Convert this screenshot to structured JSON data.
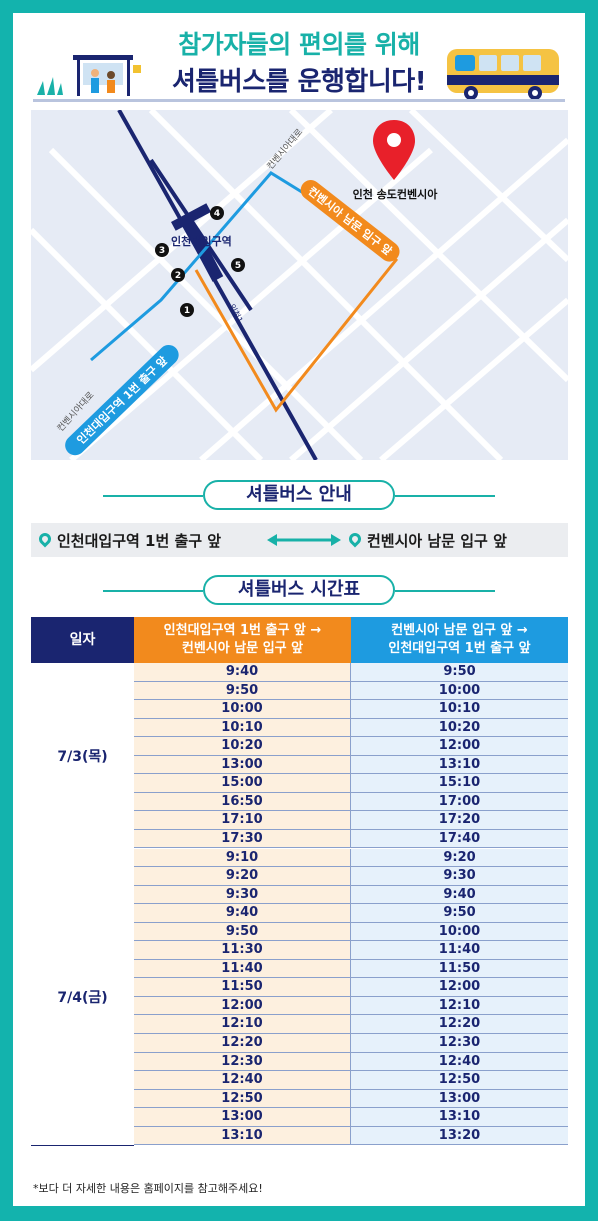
{
  "header": {
    "line1": "참가자들의 편의를 위해",
    "line2": "셔틀버스를 운행합니다!"
  },
  "map": {
    "destination_label": "인천 송도컨벤시아",
    "station_label": "인천대입구역",
    "road_label_top": "컨벤시아대로",
    "road_label_left": "컨벤시아대로",
    "road_label_mid": "인천1",
    "route_blue_label": "인천대입구역 1번 출구 앞",
    "route_orange_label": "컨벤시아 남문 입구 앞",
    "exits": [
      "1",
      "2",
      "3",
      "4",
      "5"
    ],
    "colors": {
      "blue_route": "#1e9be0",
      "orange_route": "#f28a1d",
      "subway": "#1a2570",
      "pin": "#e8202a"
    }
  },
  "guide": {
    "title": "셔틀버스 안내",
    "from": "인천대입구역 1번 출구 앞",
    "to": "컨벤시아 남문 입구 앞"
  },
  "timetable": {
    "title": "셔틀버스 시간표",
    "headers": {
      "date": "일자",
      "col1_line1": "인천대입구역 1번 출구 앞 →",
      "col1_line2": "컨벤시아 남문 입구 앞",
      "col2_line1": "컨벤시아 남문 입구 앞 →",
      "col2_line2": "인천대입구역 1번 출구 앞"
    },
    "days": [
      {
        "label": "7/3(목)",
        "rows": [
          [
            "9:40",
            "9:50"
          ],
          [
            "9:50",
            "10:00"
          ],
          [
            "10:00",
            "10:10"
          ],
          [
            "10:10",
            "10:20"
          ],
          [
            "10:20",
            "12:00"
          ],
          [
            "13:00",
            "13:10"
          ],
          [
            "15:00",
            "15:10"
          ],
          [
            "16:50",
            "17:00"
          ],
          [
            "17:10",
            "17:20"
          ],
          [
            "17:30",
            "17:40"
          ]
        ]
      },
      {
        "label": "7/4(금)",
        "rows": [
          [
            "9:10",
            "9:20"
          ],
          [
            "9:20",
            "9:30"
          ],
          [
            "9:30",
            "9:40"
          ],
          [
            "9:40",
            "9:50"
          ],
          [
            "9:50",
            "10:00"
          ],
          [
            "11:30",
            "11:40"
          ],
          [
            "11:40",
            "11:50"
          ],
          [
            "11:50",
            "12:00"
          ],
          [
            "12:00",
            "12:10"
          ],
          [
            "12:10",
            "12:20"
          ],
          [
            "12:20",
            "12:30"
          ],
          [
            "12:30",
            "12:40"
          ],
          [
            "12:40",
            "12:50"
          ],
          [
            "12:50",
            "13:00"
          ],
          [
            "13:00",
            "13:10"
          ],
          [
            "13:10",
            "13:20"
          ]
        ]
      }
    ]
  },
  "footer": {
    "note": "*보다 더 자세한 내용은 홈페이지를 참고해주세요!"
  }
}
